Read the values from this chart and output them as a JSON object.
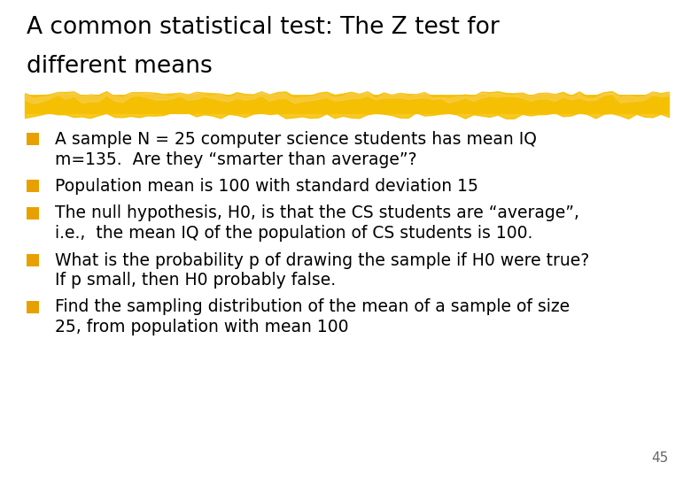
{
  "background_color": "#ffffff",
  "title_line1": "A common statistical test: The Z test for",
  "title_line2": "different means",
  "title_fontsize": 19,
  "title_color": "#000000",
  "highlight_bar_color": "#F5C000",
  "bullet_color": "#E8A000",
  "body_fontsize": 13.5,
  "body_color": "#000000",
  "page_number": "45",
  "bullets": [
    {
      "lines": [
        "A sample N = 25 computer science students has mean IQ",
        "m=135.  Are they “smarter than average”?"
      ]
    },
    {
      "lines": [
        "Population mean is 100 with standard deviation 15"
      ]
    },
    {
      "lines": [
        "The null hypothesis, H0, is that the CS students are “average”,",
        "i.e.,  the mean IQ of the population of CS students is 100."
      ]
    },
    {
      "lines": [
        "What is the probability p of drawing the sample if H0 were true?",
        "If p small, then H0 probably false."
      ]
    },
    {
      "lines": [
        "Find the sampling distribution of the mean of a sample of size",
        "25, from population with mean 100"
      ]
    }
  ]
}
